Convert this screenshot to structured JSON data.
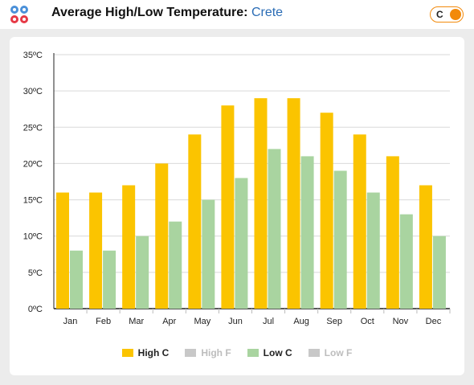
{
  "header": {
    "title": "Average High/Low Temperature:",
    "location": "Crete",
    "unit_toggle_label": "C"
  },
  "colors": {
    "high_c": "#fbc400",
    "low_c": "#a9d4a0",
    "inactive": "#c8c8c8",
    "accent": "#f28a0b"
  },
  "legend": [
    {
      "label": "High C",
      "color": "#fbc400",
      "active": true
    },
    {
      "label": "High F",
      "color": "#c8c8c8",
      "active": false
    },
    {
      "label": "Low C",
      "color": "#a9d4a0",
      "active": true
    },
    {
      "label": "Low F",
      "color": "#c8c8c8",
      "active": false
    }
  ],
  "chart_data": {
    "type": "bar",
    "categories": [
      "Jan",
      "Feb",
      "Mar",
      "Apr",
      "May",
      "Jun",
      "Jul",
      "Aug",
      "Sep",
      "Oct",
      "Nov",
      "Dec"
    ],
    "series": [
      {
        "name": "High C",
        "values": [
          16,
          16,
          17,
          20,
          24,
          28,
          29,
          29,
          27,
          24,
          21,
          17
        ]
      },
      {
        "name": "Low C",
        "values": [
          8,
          8,
          10,
          12,
          15,
          18,
          22,
          21,
          19,
          16,
          13,
          10
        ]
      }
    ],
    "ylim": [
      0,
      35
    ],
    "yticks": [
      0,
      5,
      10,
      15,
      20,
      25,
      30,
      35
    ],
    "ytick_labels": [
      "0ºC",
      "5ºC",
      "10ºC",
      "15ºC",
      "20ºC",
      "25ºC",
      "30ºC",
      "35ºC"
    ],
    "grid": true,
    "legend_position": "bottom"
  }
}
